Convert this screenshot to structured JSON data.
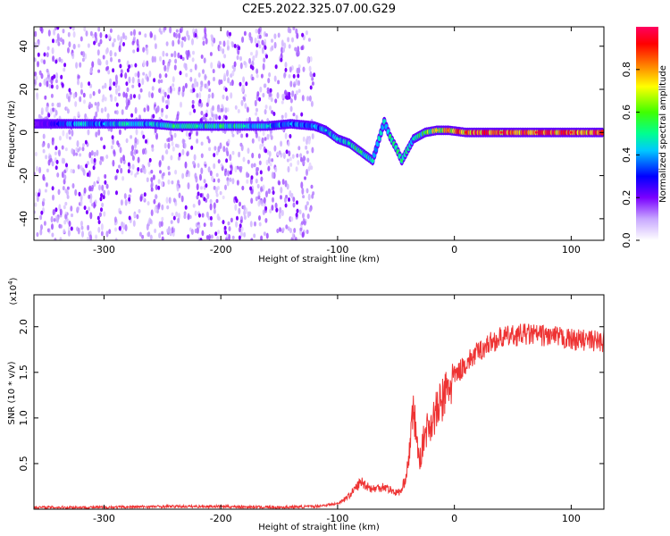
{
  "figure": {
    "title": "C2E5.2022.325.07.00.G29"
  },
  "chart_data": [
    {
      "type": "heatmap",
      "title": "C2E5.2022.325.07.00.G29",
      "xlabel": "Height of straight line (km)",
      "ylabel": "Frequency (Hz)",
      "xlim": [
        -360,
        128
      ],
      "ylim": [
        -50,
        49
      ],
      "x_ticks": [
        -300,
        -200,
        -100,
        0,
        100
      ],
      "y_ticks": [
        -40,
        -20,
        0,
        20,
        40
      ],
      "colorbar": {
        "label": "Normalized spectral amplitude",
        "range": [
          0,
          1
        ],
        "ticks": [
          "0.0",
          "0.2",
          "0.4",
          "0.6",
          "0.8"
        ],
        "colors": [
          "#ffffff",
          "#c8a8ff",
          "#7a00ff",
          "#0000ff",
          "#00c8ff",
          "#00ff90",
          "#40ff00",
          "#ffff00",
          "#ff8000",
          "#ff0000",
          "#ff0060"
        ]
      },
      "ridge_points": [
        {
          "x": -360,
          "freq": 4,
          "amp": 0.22
        },
        {
          "x": -340,
          "freq": 4,
          "amp": 0.3
        },
        {
          "x": -320,
          "freq": 4,
          "amp": 0.45
        },
        {
          "x": -300,
          "freq": 4,
          "amp": 0.4
        },
        {
          "x": -280,
          "freq": 4,
          "amp": 0.5
        },
        {
          "x": -260,
          "freq": 4,
          "amp": 0.45
        },
        {
          "x": -240,
          "freq": 3,
          "amp": 0.55
        },
        {
          "x": -220,
          "freq": 3,
          "amp": 0.5
        },
        {
          "x": -200,
          "freq": 3,
          "amp": 0.55
        },
        {
          "x": -180,
          "freq": 3,
          "amp": 0.5
        },
        {
          "x": -160,
          "freq": 3,
          "amp": 0.45
        },
        {
          "x": -140,
          "freq": 4,
          "amp": 0.4
        },
        {
          "x": -120,
          "freq": 3,
          "amp": 0.4
        },
        {
          "x": -110,
          "freq": 1,
          "amp": 0.45
        },
        {
          "x": -100,
          "freq": -3,
          "amp": 0.45
        },
        {
          "x": -90,
          "freq": -5,
          "amp": 0.5
        },
        {
          "x": -80,
          "freq": -9,
          "amp": 0.55
        },
        {
          "x": -70,
          "freq": -13,
          "amp": 0.5
        },
        {
          "x": -60,
          "freq": 5,
          "amp": 0.45
        },
        {
          "x": -55,
          "freq": -2,
          "amp": 0.55
        },
        {
          "x": -50,
          "freq": -7,
          "amp": 0.5
        },
        {
          "x": -45,
          "freq": -13,
          "amp": 0.55
        },
        {
          "x": -35,
          "freq": -3,
          "amp": 0.5
        },
        {
          "x": -25,
          "freq": 0,
          "amp": 0.6
        },
        {
          "x": -15,
          "freq": 1,
          "amp": 0.75
        },
        {
          "x": -5,
          "freq": 1,
          "amp": 0.8
        },
        {
          "x": 10,
          "freq": 0,
          "amp": 0.92
        },
        {
          "x": 40,
          "freq": 0,
          "amp": 0.95
        },
        {
          "x": 70,
          "freq": 0,
          "amp": 0.95
        },
        {
          "x": 100,
          "freq": 0,
          "amp": 0.95
        },
        {
          "x": 128,
          "freq": 0,
          "amp": 0.95
        }
      ]
    },
    {
      "type": "line",
      "xlabel": "Height of straight line (km)",
      "ylabel": "SNR (10 * v/v)",
      "y_scale_note": "(x10",
      "y_scale_exp": "4",
      "y_scale_close": ")",
      "xlim": [
        -360,
        128
      ],
      "ylim": [
        0,
        2.35
      ],
      "x_ticks": [
        -300,
        -200,
        -100,
        0,
        100
      ],
      "y_ticks": [
        0.5,
        1.0,
        1.5,
        2.0
      ],
      "line_color": "#ee3333",
      "series": [
        {
          "x": [
            -360,
            -300,
            -250,
            -200,
            -150,
            -120,
            -100,
            -90,
            -80,
            -70,
            -60,
            -50,
            -45,
            -40,
            -35,
            -30,
            -25,
            -20,
            -10,
            0,
            10,
            20,
            30,
            40,
            60,
            80,
            100,
            128
          ],
          "y": [
            0.02,
            0.02,
            0.03,
            0.03,
            0.02,
            0.03,
            0.06,
            0.15,
            0.3,
            0.22,
            0.25,
            0.18,
            0.2,
            0.45,
            1.1,
            0.5,
            0.85,
            0.95,
            1.2,
            1.45,
            1.6,
            1.72,
            1.82,
            1.88,
            1.92,
            1.9,
            1.86,
            1.84
          ]
        }
      ]
    }
  ]
}
